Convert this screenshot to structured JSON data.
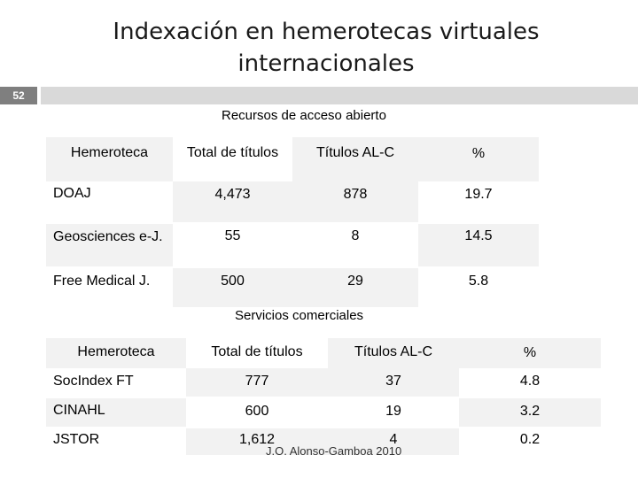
{
  "title_line1": "Indexación en hemerotecas virtuales",
  "title_line2": "internacionales",
  "slide_number": "52",
  "open_access": {
    "caption": "Recursos de acceso abierto",
    "headers": [
      "Hemeroteca",
      "Total de títulos",
      "Títulos AL-C",
      "%"
    ],
    "rows": [
      [
        "DOAJ",
        "4,473",
        "878",
        "19.7"
      ],
      [
        "Geosciences e-J.",
        "55",
        "8",
        "14.5"
      ],
      [
        "Free Medical J.",
        "500",
        "29",
        "5.8"
      ]
    ]
  },
  "commercial": {
    "caption": "Servicios comerciales",
    "headers": [
      "Hemeroteca",
      "Total de títulos",
      "Títulos AL-C",
      "%"
    ],
    "rows": [
      [
        "SocIndex FT",
        "777",
        "37",
        "4.8"
      ],
      [
        "CINAHL",
        "600",
        "19",
        "3.2"
      ],
      [
        "JSTOR",
        "1,612",
        "4",
        "0.2"
      ]
    ]
  },
  "footer": "J.O. Alonso-Gamboa 2010"
}
